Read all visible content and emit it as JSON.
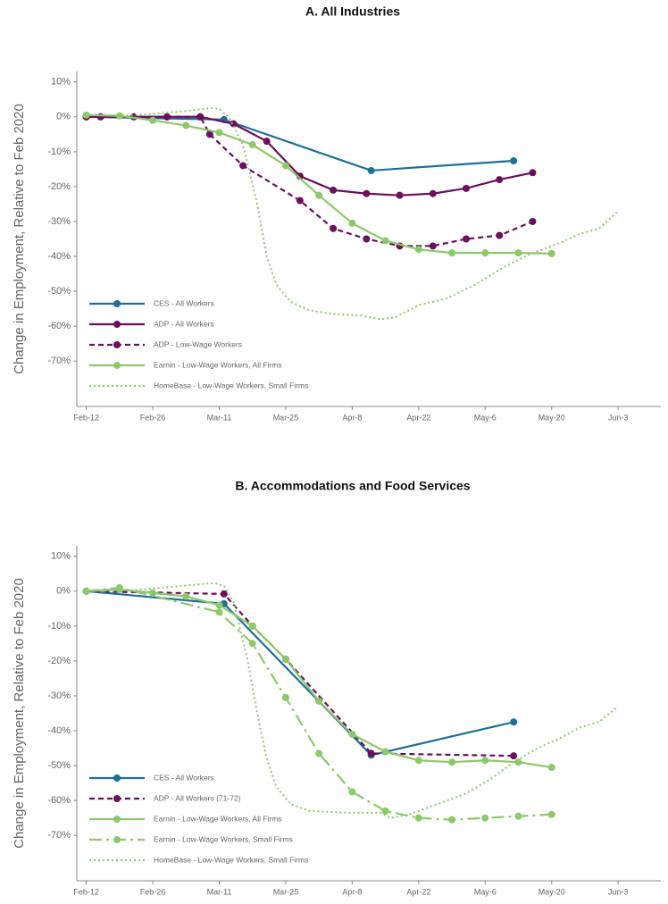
{
  "chart_data": [
    {
      "type": "line",
      "title": "A. All Industries",
      "y_label": "Change in Employment, Relative to Feb 2020",
      "xlim": [
        -2,
        121
      ],
      "ylim": [
        -83,
        13
      ],
      "xticks": [
        {
          "value": 0,
          "label": "Feb-12"
        },
        {
          "value": 14,
          "label": "Feb-26"
        },
        {
          "value": 28,
          "label": "Mar-11"
        },
        {
          "value": 42,
          "label": "Mar-25"
        },
        {
          "value": 56,
          "label": "Apr-8"
        },
        {
          "value": 70,
          "label": "Apr-22"
        },
        {
          "value": 84,
          "label": "May-6"
        },
        {
          "value": 98,
          "label": "May-20"
        },
        {
          "value": 112,
          "label": "Jun-3"
        }
      ],
      "yticks": [
        {
          "value": 10,
          "label": "10%"
        },
        {
          "value": 0,
          "label": "0%"
        },
        {
          "value": -10,
          "label": "-10%"
        },
        {
          "value": -20,
          "label": "-20%"
        },
        {
          "value": -30,
          "label": "-30%"
        },
        {
          "value": -40,
          "label": "-40%"
        },
        {
          "value": -50,
          "label": "-50%"
        },
        {
          "value": -60,
          "label": "-60%"
        },
        {
          "value": -70,
          "label": "-70%"
        }
      ],
      "legend": "lower left",
      "series": [
        {
          "name": "CES - All Workers",
          "color": "#1f6f9a",
          "style": "solid",
          "markers": true,
          "x": [
            0,
            29,
            60,
            90
          ],
          "values": [
            0,
            -0.8,
            -15.4,
            -12.6
          ]
        },
        {
          "name": "ADP - All Workers",
          "color": "#6b0f5e",
          "style": "solid",
          "markers": true,
          "x": [
            0,
            3,
            10,
            17,
            24,
            31,
            38,
            45,
            52,
            59,
            66,
            73,
            80,
            87,
            94
          ],
          "values": [
            0,
            0,
            0,
            0,
            0,
            -2,
            -7,
            -17,
            -21,
            -22,
            -22.5,
            -22,
            -20.5,
            -18,
            -16
          ]
        },
        {
          "name": "ADP - Low-Wage Workers",
          "color": "#6b0f5e",
          "style": "dashed",
          "markers": true,
          "x": [
            0,
            3,
            10,
            17,
            24,
            26,
            33,
            45,
            52,
            59,
            66,
            73,
            80,
            87,
            94
          ],
          "values": [
            0,
            0,
            0,
            0,
            0,
            -5,
            -14,
            -24,
            -32,
            -35,
            -37,
            -37,
            -35,
            -34,
            -30
          ]
        },
        {
          "name": "Earnin - Low-Wage Workers, All Firms",
          "color": "#8cc96a",
          "style": "solid",
          "markers": true,
          "x": [
            0,
            7,
            14,
            21,
            28,
            35,
            42,
            49,
            56,
            63,
            70,
            77,
            84,
            91,
            98
          ],
          "values": [
            0.5,
            0.3,
            -1,
            -2.5,
            -4.5,
            -8,
            -14,
            -22.5,
            -30.5,
            -35.5,
            -38,
            -39,
            -39,
            -39,
            -39.2
          ]
        },
        {
          "name": "HomeBase - Low-Wage Workers, Small Firms",
          "color": "#8cc96a",
          "style": "dotted",
          "markers": false,
          "x": [
            0,
            10,
            20,
            26,
            28,
            30,
            33,
            36,
            38,
            40,
            43,
            47,
            52,
            58,
            62,
            65,
            70,
            76,
            82,
            88,
            94,
            100,
            104,
            108,
            112
          ],
          "values": [
            0.5,
            0.5,
            1.5,
            2.5,
            2.3,
            0,
            -8,
            -25,
            -40,
            -48,
            -53,
            -55.5,
            -56.5,
            -57,
            -58,
            -57.5,
            -54,
            -52,
            -48,
            -43,
            -39,
            -36,
            -33.5,
            -32,
            -27
          ]
        }
      ]
    },
    {
      "type": "line",
      "title": "B. Accommodations and Food Services",
      "y_label": "Change in Employment, Relative to Feb 2020",
      "xlim": [
        -2,
        121
      ],
      "ylim": [
        -83,
        13
      ],
      "xticks": [
        {
          "value": 0,
          "label": "Feb-12"
        },
        {
          "value": 14,
          "label": "Feb-26"
        },
        {
          "value": 28,
          "label": "Mar-11"
        },
        {
          "value": 42,
          "label": "Mar-25"
        },
        {
          "value": 56,
          "label": "Apr-8"
        },
        {
          "value": 70,
          "label": "Apr-22"
        },
        {
          "value": 84,
          "label": "May-6"
        },
        {
          "value": 98,
          "label": "May-20"
        },
        {
          "value": 112,
          "label": "Jun-3"
        }
      ],
      "yticks": [
        {
          "value": 10,
          "label": "10%"
        },
        {
          "value": 0,
          "label": "0%"
        },
        {
          "value": -10,
          "label": "-10%"
        },
        {
          "value": -20,
          "label": "-20%"
        },
        {
          "value": -30,
          "label": "-30%"
        },
        {
          "value": -40,
          "label": "-40%"
        },
        {
          "value": -50,
          "label": "-50%"
        },
        {
          "value": -60,
          "label": "-60%"
        },
        {
          "value": -70,
          "label": "-70%"
        }
      ],
      "legend": "lower left",
      "series": [
        {
          "name": "CES - All Workers",
          "color": "#1f6f9a",
          "style": "solid",
          "markers": true,
          "x": [
            0,
            29,
            60,
            90
          ],
          "values": [
            0,
            -3.6,
            -47,
            -37.5
          ]
        },
        {
          "name": "ADP - All Workers (71-72)",
          "color": "#6b0f5e",
          "style": "dashed",
          "markers": true,
          "x": [
            0,
            29,
            35,
            42,
            60,
            90
          ],
          "values": [
            0,
            -0.8,
            -10,
            -19.5,
            -46.5,
            -47.2
          ]
        },
        {
          "name": "Earnin - Low-Wage Workers, All Firms",
          "color": "#8cc96a",
          "style": "solid",
          "markers": true,
          "x": [
            0,
            7,
            14,
            21,
            28,
            35,
            42,
            49,
            56,
            63,
            70,
            77,
            84,
            91,
            98
          ],
          "values": [
            0,
            0.5,
            -0.5,
            -1.5,
            -4,
            -10,
            -19.5,
            -31.5,
            -41,
            -46,
            -48.5,
            -49,
            -48.5,
            -49,
            -50.5
          ]
        },
        {
          "name": "Earnin - Low-Wage Workers, Small Firms",
          "color": "#8cc96a",
          "style": "dashdot",
          "markers": true,
          "x": [
            0,
            7,
            28,
            35,
            42,
            49,
            56,
            63,
            70,
            77,
            84,
            91,
            98
          ],
          "values": [
            0,
            1,
            -6,
            -15,
            -30.5,
            -46.5,
            -57.5,
            -63,
            -65,
            -65.5,
            -65,
            -64.5,
            -64
          ]
        },
        {
          "name": "HomeBase - Low-Wage Workers, Small Firms",
          "color": "#8cc96a",
          "style": "dotted",
          "markers": false,
          "x": [
            0,
            10,
            20,
            27,
            29,
            31,
            34,
            36,
            38,
            40,
            43,
            47,
            55,
            62,
            64,
            68,
            74,
            80,
            85,
            90,
            95,
            100,
            104,
            108,
            112
          ],
          "values": [
            0,
            0.3,
            1.5,
            2.3,
            1.5,
            -3,
            -20,
            -35,
            -48,
            -56,
            -61,
            -63,
            -63.5,
            -63.5,
            -65,
            -64,
            -61,
            -58,
            -54,
            -49,
            -45,
            -42,
            -39,
            -37.5,
            -33
          ]
        }
      ]
    }
  ]
}
